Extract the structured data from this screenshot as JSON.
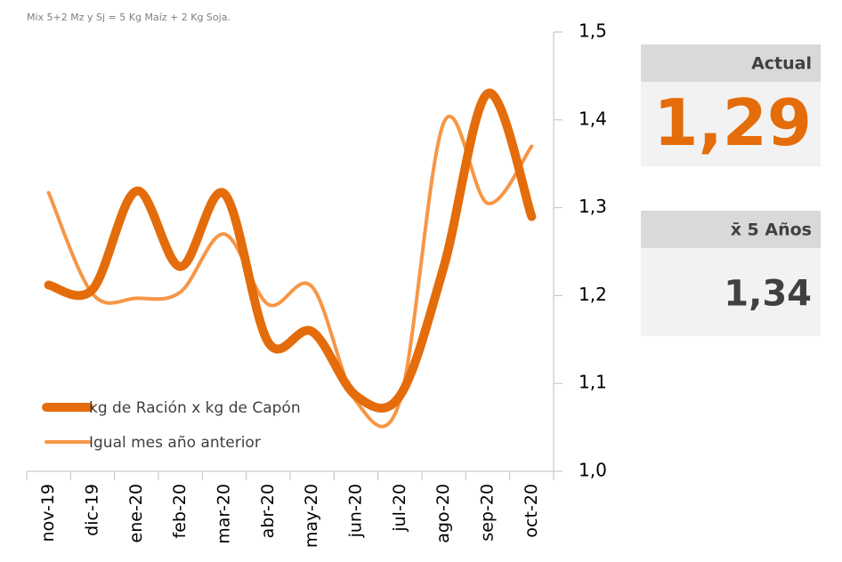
{
  "chart_data": {
    "type": "line",
    "subtitle": "Mix 5+2 Mz y Sj = 5 Kg Maíz + 2 Kg Soja.",
    "categories": [
      "nov-19",
      "dic-19",
      "ene-20",
      "feb-20",
      "mar-20",
      "abr-20",
      "may-20",
      "jun-20",
      "jul-20",
      "ago-20",
      "sep-20",
      "oct-20"
    ],
    "series": [
      {
        "name": "kg de Ración x kg de Capón",
        "color": "#e46c0a",
        "values": [
          1.212,
          1.207,
          1.319,
          1.233,
          1.316,
          1.147,
          1.159,
          1.086,
          1.086,
          1.233,
          1.43,
          1.29
        ]
      },
      {
        "name": "Igual mes año anterior",
        "color": "#f79646",
        "values": [
          1.317,
          1.202,
          1.197,
          1.204,
          1.27,
          1.19,
          1.21,
          1.08,
          1.08,
          1.397,
          1.305,
          1.37
        ]
      }
    ],
    "ylim": [
      1.0,
      1.5
    ],
    "yticks": [
      {
        "value": 1.0,
        "label": "1,0"
      },
      {
        "value": 1.1,
        "label": "1,1"
      },
      {
        "value": 1.2,
        "label": "1,2"
      },
      {
        "value": 1.3,
        "label": "1,3"
      },
      {
        "value": 1.4,
        "label": "1,4"
      },
      {
        "value": 1.5,
        "label": "1,5"
      }
    ],
    "y_axis_side": "right",
    "legend": "bottom-left"
  },
  "panels": [
    {
      "title": "Actual",
      "value": "1,29",
      "color": "#e46c0a"
    },
    {
      "title": "x̄ 5 Años",
      "value": "1,34",
      "color": "#404040"
    }
  ]
}
